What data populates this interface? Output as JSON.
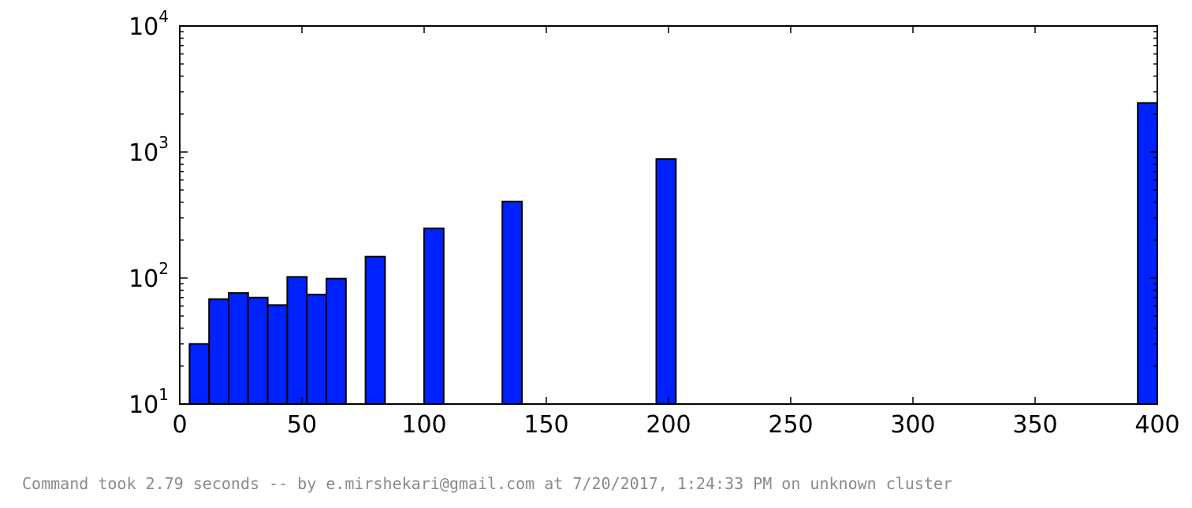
{
  "chart_data": {
    "type": "bar",
    "xlabel": "",
    "ylabel": "",
    "xlim": [
      0,
      400
    ],
    "ylim": [
      10,
      10000
    ],
    "y_scale": "log",
    "grid": false,
    "bar_color": "#0022ff",
    "edge_color": "#000000",
    "x_ticks": [
      {
        "value": 0,
        "label": "0"
      },
      {
        "value": 50,
        "label": "50"
      },
      {
        "value": 100,
        "label": "100"
      },
      {
        "value": 150,
        "label": "150"
      },
      {
        "value": 200,
        "label": "200"
      },
      {
        "value": 250,
        "label": "250"
      },
      {
        "value": 300,
        "label": "300"
      },
      {
        "value": 350,
        "label": "350"
      },
      {
        "value": 400,
        "label": "400"
      }
    ],
    "y_ticks": [
      {
        "value": 10,
        "base": "10",
        "exp": "1"
      },
      {
        "value": 100,
        "base": "10",
        "exp": "2"
      },
      {
        "value": 1000,
        "base": "10",
        "exp": "3"
      },
      {
        "value": 10000,
        "base": "10",
        "exp": "4"
      }
    ],
    "bars": [
      {
        "x0": 4,
        "x1": 12,
        "value": 30
      },
      {
        "x0": 12,
        "x1": 20,
        "value": 68
      },
      {
        "x0": 20,
        "x1": 28,
        "value": 76
      },
      {
        "x0": 28,
        "x1": 36,
        "value": 70
      },
      {
        "x0": 36,
        "x1": 44,
        "value": 61
      },
      {
        "x0": 44,
        "x1": 52,
        "value": 102
      },
      {
        "x0": 52,
        "x1": 60,
        "value": 74
      },
      {
        "x0": 60,
        "x1": 68,
        "value": 99
      },
      {
        "x0": 76,
        "x1": 84,
        "value": 148
      },
      {
        "x0": 100,
        "x1": 108,
        "value": 248
      },
      {
        "x0": 132,
        "x1": 140,
        "value": 405
      },
      {
        "x0": 195,
        "x1": 203,
        "value": 880
      },
      {
        "x0": 392,
        "x1": 400,
        "value": 2450
      }
    ]
  },
  "footer": {
    "text": "Command took 2.79 seconds -- by e.mirshekari@gmail.com at 7/20/2017, 1:24:33 PM on unknown cluster"
  }
}
